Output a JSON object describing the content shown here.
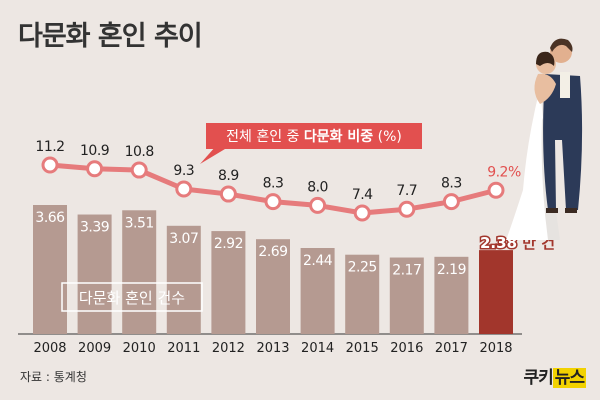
{
  "title": "다문화 혼인 추이",
  "source": "자료 : 통계청",
  "brand": {
    "part1": "쿠키",
    "part2": "뉴스"
  },
  "colors": {
    "bar": "#b59a91",
    "bar_highlight": "#a2362c",
    "line": "#e67b7c",
    "line_label_highlight": "#e2504f",
    "background": "#ede7e3",
    "text": "#333333"
  },
  "chart_data": {
    "type": "bar",
    "categories": [
      "2008",
      "2009",
      "2010",
      "2011",
      "2012",
      "2013",
      "2014",
      "2015",
      "2016",
      "2017",
      "2018"
    ],
    "bar_series": {
      "name": "다문화 혼인 건수",
      "unit": "만 건",
      "values": [
        3.66,
        3.39,
        3.51,
        3.07,
        2.92,
        2.69,
        2.44,
        2.25,
        2.17,
        2.19,
        2.38
      ],
      "labels": [
        "3.66",
        "3.39",
        "3.51",
        "3.07",
        "2.92",
        "2.69",
        "2.44",
        "2.25",
        "2.17",
        "2.19",
        "2.38"
      ],
      "highlight_index": 10,
      "highlight_label": "2.38",
      "highlight_unit": "만 건",
      "ylim": [
        0,
        4.3
      ]
    },
    "line_series": {
      "name_plain": "전체 혼인 중 ",
      "name_bold": "다문화 비중",
      "name_unit": " (%)",
      "values": [
        11.2,
        10.9,
        10.8,
        9.3,
        8.9,
        8.3,
        8.0,
        7.4,
        7.7,
        8.3,
        9.2
      ],
      "labels": [
        "11.2",
        "10.9",
        "10.8",
        "9.3",
        "8.9",
        "8.3",
        "8.0",
        "7.4",
        "7.7",
        "8.3",
        "9.2%"
      ],
      "highlight_index": 10,
      "ylim": [
        7.0,
        11.6
      ]
    },
    "grid": false,
    "legend": "inline"
  }
}
